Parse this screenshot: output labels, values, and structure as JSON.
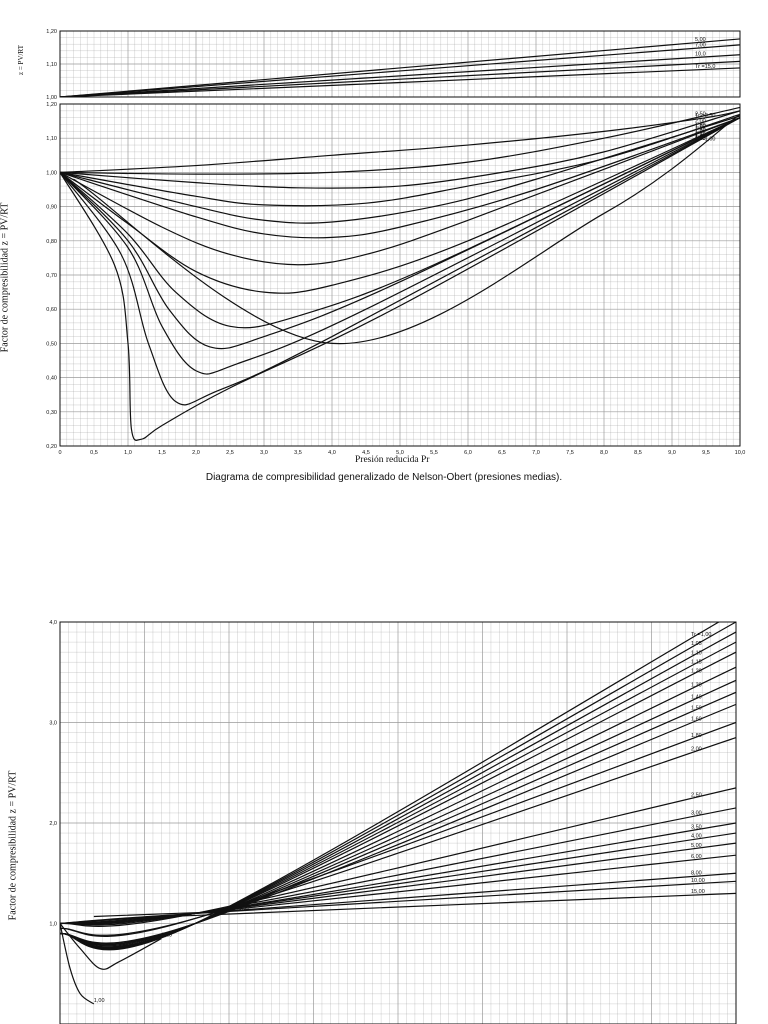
{
  "caption": "Diagrama de compresibilidad generalizado de Nelson-Obert (presiones medias).",
  "ink_color": "#111111",
  "grid_color": "#9a9a9a",
  "chart_data": [
    {
      "id": "top-strip",
      "type": "line",
      "ylabel": "z = PV/RT",
      "xlim": [
        0,
        10
      ],
      "ylim": [
        1.0,
        1.2
      ],
      "yticks": [
        "1,00",
        "1,10",
        "1,20"
      ],
      "series": [
        {
          "label": "5,00",
          "x": [
            0,
            10
          ],
          "y": [
            1.0,
            1.176
          ]
        },
        {
          "label": "7,00",
          "x": [
            0,
            10
          ],
          "y": [
            1.0,
            1.158
          ]
        },
        {
          "label": "10,0",
          "x": [
            0,
            10
          ],
          "y": [
            1.0,
            1.128
          ]
        },
        {
          "label": "",
          "x": [
            0,
            10
          ],
          "y": [
            1.0,
            1.108
          ]
        },
        {
          "label": "Tr =15,0",
          "x": [
            0,
            10
          ],
          "y": [
            1.0,
            1.088
          ]
        }
      ]
    },
    {
      "id": "main",
      "type": "line",
      "ylabel": "Factor de compresibilidad  z = PV/RT",
      "xlabel": "Presión reducida  Pr",
      "xlim": [
        0,
        10
      ],
      "ylim": [
        0.2,
        1.2
      ],
      "xticks": [
        "0",
        "0,5",
        "1,0",
        "1,5",
        "2,0",
        "2,5",
        "3,0",
        "3,5",
        "4,0",
        "4,5",
        "5,0",
        "5,5",
        "6,0",
        "6,5",
        "7,0",
        "7,5",
        "8,0",
        "8,5",
        "9,0",
        "9,5",
        "10,0"
      ],
      "yticks": [
        "0,20",
        "0,30",
        "0,40",
        "0,50",
        "0,60",
        "0,70",
        "0,80",
        "0,90",
        "1,00",
        "1,10",
        "1,20"
      ],
      "series": [
        {
          "label": "Tr =3,50",
          "x": [
            0,
            2,
            4,
            6,
            8,
            9.5,
            10
          ],
          "y": [
            1.0,
            1.02,
            1.05,
            1.08,
            1.12,
            1.16,
            1.18
          ]
        },
        {
          "label": "2,50",
          "x": [
            0,
            2,
            4,
            6,
            8,
            10
          ],
          "y": [
            1.0,
            0.995,
            1.0,
            1.03,
            1.1,
            1.19
          ]
        },
        {
          "label": "2,00",
          "x": [
            0,
            2,
            3.5,
            5,
            6.5,
            8,
            10
          ],
          "y": [
            1.0,
            0.97,
            0.955,
            0.96,
            1.0,
            1.06,
            1.18
          ]
        },
        {
          "label": "1,80",
          "x": [
            0,
            2,
            3,
            4.5,
            6,
            8,
            10
          ],
          "y": [
            1.0,
            0.93,
            0.905,
            0.91,
            0.96,
            1.04,
            1.17
          ]
        },
        {
          "label": "1,60",
          "x": [
            0,
            2,
            3,
            4,
            5.5,
            7,
            10
          ],
          "y": [
            1.0,
            0.9,
            0.86,
            0.855,
            0.9,
            0.98,
            1.165
          ]
        },
        {
          "label": "1,50",
          "x": [
            0,
            2,
            3,
            4,
            5,
            7,
            10
          ],
          "y": [
            1.0,
            0.87,
            0.82,
            0.81,
            0.84,
            0.95,
            1.16
          ]
        },
        {
          "label": "1,40",
          "x": [
            0,
            1.5,
            2.5,
            3.5,
            4.5,
            6,
            10
          ],
          "y": [
            1.0,
            0.84,
            0.76,
            0.73,
            0.76,
            0.86,
            1.16
          ]
        },
        {
          "label": "1,30",
          "x": [
            0,
            1,
            2,
            3,
            4,
            6,
            10
          ],
          "y": [
            1.0,
            0.85,
            0.71,
            0.65,
            0.67,
            0.8,
            1.16
          ]
        },
        {
          "label": "1,20",
          "x": [
            0,
            1,
            1.7,
            2.5,
            3.5,
            5.5,
            10
          ],
          "y": [
            1.0,
            0.82,
            0.65,
            0.55,
            0.58,
            0.73,
            1.16
          ]
        },
        {
          "label": "1,15",
          "x": [
            0,
            1,
            1.6,
            2.2,
            3,
            5,
            10
          ],
          "y": [
            1.0,
            0.8,
            0.6,
            0.49,
            0.52,
            0.68,
            1.16
          ]
        },
        {
          "label": "1,10",
          "x": [
            0,
            1,
            1.5,
            2,
            2.6,
            4.5,
            10
          ],
          "y": [
            1.0,
            0.78,
            0.55,
            0.42,
            0.44,
            0.6,
            1.16
          ]
        },
        {
          "label": "1,05",
          "x": [
            0,
            0.9,
            1.3,
            1.7,
            2.3,
            4,
            10
          ],
          "y": [
            1.0,
            0.76,
            0.5,
            0.33,
            0.36,
            0.52,
            1.16
          ]
        },
        {
          "label": "Tr =1,00",
          "x": [
            0,
            0.8,
            1.0,
            1.05,
            1.2,
            1.5,
            2.5,
            5,
            10
          ],
          "y": [
            1.0,
            0.73,
            0.5,
            0.25,
            0.22,
            0.26,
            0.37,
            0.61,
            1.16
          ]
        },
        {
          "label": "",
          "x": [
            0.2,
            4,
            8,
            10
          ],
          "y": [
            0.98,
            0.5,
            0.88,
            1.17
          ]
        }
      ]
    },
    {
      "id": "lower",
      "type": "line",
      "ylabel": "Factor de compresibilidad  z = PV/RT",
      "xlim": [
        0,
        40
      ],
      "ylim": [
        0.0,
        4.0
      ],
      "yticks": [
        "1,0",
        "2,0",
        "3,0",
        "4,0"
      ],
      "series": [
        {
          "label": "Tr =1,00",
          "x": [
            0,
            8,
            40
          ],
          "y": [
            0.9,
            1.0,
            4.1
          ]
        },
        {
          "label": "1,05",
          "x": [
            0,
            8,
            40
          ],
          "y": [
            0.9,
            1.0,
            4.0
          ]
        },
        {
          "label": "1,10",
          "x": [
            0,
            8,
            40
          ],
          "y": [
            0.9,
            1.0,
            3.9
          ]
        },
        {
          "label": "1,15",
          "x": [
            0,
            8,
            40
          ],
          "y": [
            0.9,
            1.0,
            3.8
          ]
        },
        {
          "label": "1,20",
          "x": [
            0,
            8,
            40
          ],
          "y": [
            0.9,
            1.0,
            3.7
          ]
        },
        {
          "label": "1,30",
          "x": [
            0,
            8,
            40
          ],
          "y": [
            0.9,
            1.0,
            3.55
          ]
        },
        {
          "label": "1,40",
          "x": [
            0,
            8,
            40
          ],
          "y": [
            0.9,
            1.0,
            3.42
          ]
        },
        {
          "label": "1,50",
          "x": [
            0,
            8,
            40
          ],
          "y": [
            0.9,
            1.0,
            3.3
          ]
        },
        {
          "label": "1,60",
          "x": [
            0,
            8,
            40
          ],
          "y": [
            0.9,
            1.0,
            3.18
          ]
        },
        {
          "label": "1,80",
          "x": [
            0,
            8,
            40
          ],
          "y": [
            0.95,
            1.05,
            3.0
          ]
        },
        {
          "label": "2,00",
          "x": [
            0,
            8,
            40
          ],
          "y": [
            0.95,
            1.05,
            2.85
          ]
        },
        {
          "label": "2,50",
          "x": [
            0,
            8,
            40
          ],
          "y": [
            1.0,
            1.1,
            2.35
          ]
        },
        {
          "label": "3,00",
          "x": [
            0,
            8,
            40
          ],
          "y": [
            1.0,
            1.1,
            2.15
          ]
        },
        {
          "label": "3,50",
          "x": [
            0,
            8,
            40
          ],
          "y": [
            1.0,
            1.1,
            2.0
          ]
        },
        {
          "label": "4,00",
          "x": [
            0,
            8,
            40
          ],
          "y": [
            1.0,
            1.1,
            1.9
          ]
        },
        {
          "label": "5,00",
          "x": [
            0,
            8,
            40
          ],
          "y": [
            1.0,
            1.1,
            1.8
          ]
        },
        {
          "label": "6,00",
          "x": [
            0,
            8,
            40
          ],
          "y": [
            1.0,
            1.1,
            1.68
          ]
        },
        {
          "label": "8,00",
          "x": [
            0,
            8,
            40
          ],
          "y": [
            1.0,
            1.1,
            1.5
          ]
        },
        {
          "label": "10,00",
          "x": [
            0,
            8,
            40
          ],
          "y": [
            1.0,
            1.1,
            1.42
          ]
        },
        {
          "label": "15,00",
          "x": [
            0,
            8,
            40
          ],
          "y": [
            1.0,
            1.08,
            1.3
          ]
        },
        {
          "label": "Tr =5,00",
          "x": [
            2,
            10
          ],
          "y": [
            1.07,
            1.12
          ]
        },
        {
          "label": "1,20",
          "x": [
            0,
            1.2,
            2.4,
            3.5,
            6
          ],
          "y": [
            1.0,
            0.75,
            0.55,
            0.62,
            0.85
          ]
        },
        {
          "label": "1,00",
          "x": [
            0,
            0.6,
            1.2,
            2.0
          ],
          "y": [
            1.0,
            0.55,
            0.3,
            0.2
          ]
        }
      ]
    }
  ]
}
